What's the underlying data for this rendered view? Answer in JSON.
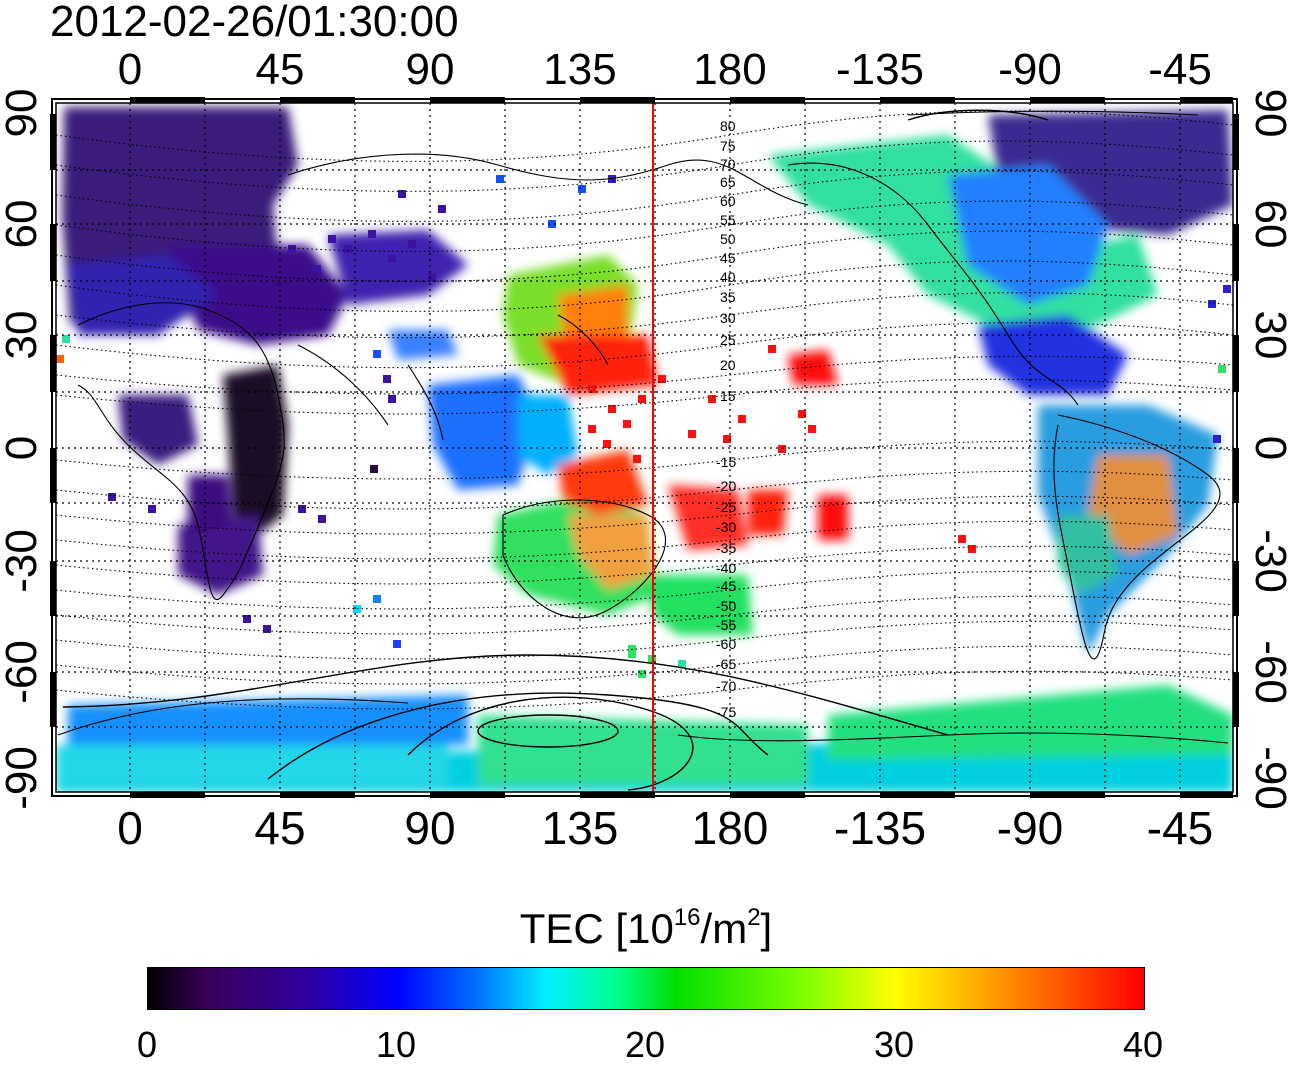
{
  "title": "2012-02-26/01:30:00",
  "top_ticks": [
    "0",
    "45",
    "90",
    "135",
    "180",
    "-135",
    "-90",
    "-45"
  ],
  "bottom_ticks": [
    "0",
    "45",
    "90",
    "135",
    "180",
    "-135",
    "-90",
    "-45"
  ],
  "lat_ticks": [
    "90",
    "60",
    "30",
    "0",
    "-30",
    "-60",
    "-90"
  ],
  "contour_labels": [
    "80",
    "75",
    "70",
    "65",
    "60",
    "55",
    "50",
    "45",
    "40",
    "35",
    "30",
    "25",
    "20",
    "15",
    "-15",
    "-20",
    "-25",
    "-30",
    "-35",
    "-40",
    "-45",
    "-50",
    "-55",
    "-60",
    "-65",
    "-70",
    "-75"
  ],
  "colorbar": {
    "title": "TEC  [10",
    "sup1": "16",
    "mid": "/m",
    "sup2": "2",
    "end": "]",
    "ticks": [
      "0",
      "10",
      "20",
      "30",
      "40"
    ],
    "min": 0,
    "max": 40
  },
  "colors": {
    "marker_line": "#ff0000",
    "coast": "#000000"
  }
}
